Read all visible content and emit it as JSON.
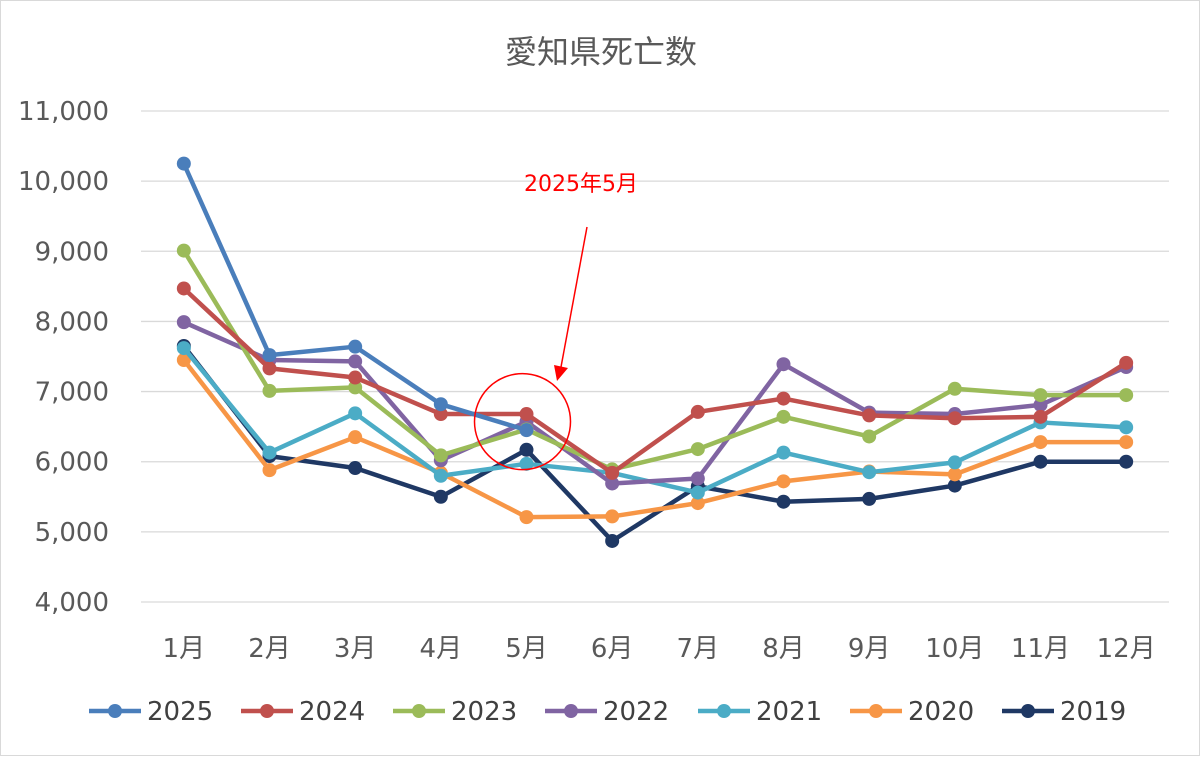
{
  "chart_data": {
    "type": "line",
    "title": "愛知県死亡数",
    "xlabel": "",
    "ylabel": "",
    "categories": [
      "1月",
      "2月",
      "3月",
      "4月",
      "5月",
      "6月",
      "7月",
      "8月",
      "9月",
      "10月",
      "11月",
      "12月"
    ],
    "ylim": [
      4000,
      11000
    ],
    "yticks": [
      4000,
      5000,
      6000,
      7000,
      8000,
      9000,
      10000,
      11000
    ],
    "ytick_labels": [
      "4,000",
      "5,000",
      "6,000",
      "7,000",
      "8,000",
      "9,000",
      "10,000",
      "11,000"
    ],
    "grid": true,
    "legend_position": "bottom",
    "series": [
      {
        "name": "2025",
        "color": "#4a7ebb",
        "values": [
          10250,
          7520,
          7640,
          6820,
          6450,
          null,
          null,
          null,
          null,
          null,
          null,
          null
        ]
      },
      {
        "name": "2024",
        "color": "#c0504d",
        "values": [
          8470,
          7330,
          7200,
          6680,
          6680,
          5840,
          6710,
          6900,
          6660,
          6620,
          6640,
          7410
        ]
      },
      {
        "name": "2023",
        "color": "#9bbb59",
        "values": [
          9010,
          7010,
          7060,
          6090,
          6460,
          5890,
          6180,
          6640,
          6360,
          7040,
          6950,
          6950
        ]
      },
      {
        "name": "2022",
        "color": "#8064a2",
        "values": [
          7990,
          7450,
          7430,
          6020,
          6570,
          5690,
          5760,
          7390,
          6700,
          6680,
          6810,
          7350
        ]
      },
      {
        "name": "2021",
        "color": "#4bacc6",
        "values": [
          7620,
          6130,
          6690,
          5800,
          5970,
          5840,
          5560,
          6130,
          5850,
          5990,
          6560,
          6490
        ]
      },
      {
        "name": "2020",
        "color": "#f79646",
        "values": [
          7450,
          5880,
          6350,
          5840,
          5210,
          5220,
          5410,
          5720,
          5860,
          5820,
          6280,
          6280
        ]
      },
      {
        "name": "2019",
        "color": "#1f3864",
        "values": [
          7650,
          6080,
          5910,
          5500,
          6170,
          4870,
          5650,
          5430,
          5470,
          5660,
          6000,
          6000
        ]
      }
    ],
    "annotations": [
      {
        "text": "2025年5月",
        "color": "#ff0000",
        "shape": "circle-with-arrow",
        "target": {
          "x": "5月",
          "y": 6600
        }
      }
    ]
  }
}
